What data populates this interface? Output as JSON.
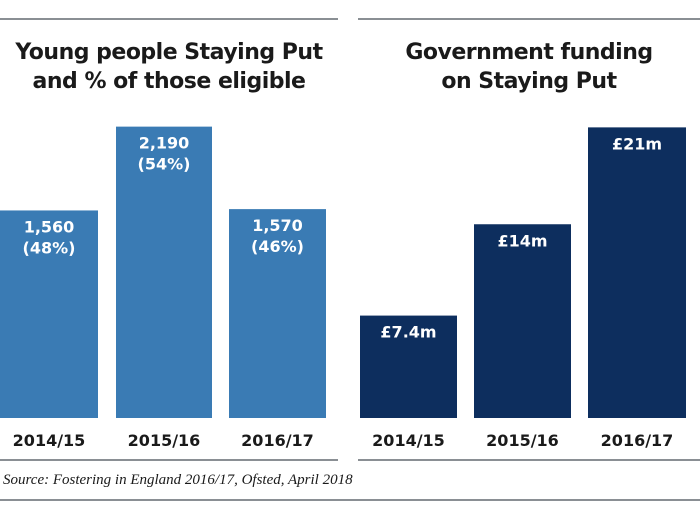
{
  "chart_data": [
    {
      "type": "bar",
      "title": "Young people Staying Put\nand % of those eligible",
      "categories": [
        "2014/15",
        "2015/16",
        "2016/17"
      ],
      "values": [
        1560,
        2190,
        1570
      ],
      "data_labels": [
        "1,560\n(48%)",
        "2,190\n(54%)",
        "1,570\n(46%)"
      ],
      "percent_eligible": [
        48,
        54,
        46
      ],
      "xlabel": "",
      "ylabel": "",
      "ylim": [
        0,
        2330
      ],
      "grid": false,
      "color": "#3a7bb4"
    },
    {
      "type": "bar",
      "title": "Government funding\non Staying Put",
      "categories": [
        "2014/15",
        "2015/16",
        "2016/17"
      ],
      "values": [
        7.4,
        14,
        21
      ],
      "data_labels": [
        "£7.4m",
        "£14m",
        "£21m"
      ],
      "xlabel": "",
      "ylabel": "",
      "ylim": [
        0,
        22.4
      ],
      "grid": false,
      "color": "#0d2e5e"
    }
  ],
  "source": "Source: Fostering in England 2016/17, Ofsted, April 2018"
}
